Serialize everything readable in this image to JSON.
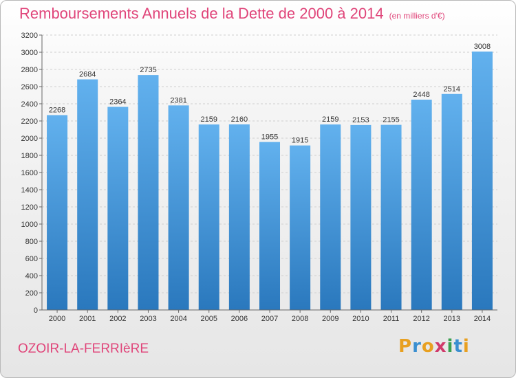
{
  "header": {
    "title": "Remboursements Annuels de la Dette de 2000 à 2014",
    "subtitle": "(en milliers d'€)"
  },
  "footer": {
    "city": "OZOIR-LA-FERRIèRE",
    "logo": [
      "P",
      "r",
      "o",
      "x",
      "i",
      "t",
      "i"
    ]
  },
  "colors": {
    "title": "#e0457a",
    "bar_light": "#62b1ee",
    "bar_dark": "#2d7cc0"
  },
  "chart_data": {
    "type": "bar",
    "title": "Remboursements Annuels de la Dette de 2000 à 2014",
    "xlabel": "",
    "ylabel": "",
    "categories": [
      "2000",
      "2001",
      "2002",
      "2003",
      "2004",
      "2005",
      "2006",
      "2007",
      "2008",
      "2009",
      "2010",
      "2011",
      "2012",
      "2013",
      "2014"
    ],
    "values": [
      2268,
      2684,
      2364,
      2735,
      2381,
      2159,
      2160,
      1955,
      1915,
      2159,
      2153,
      2155,
      2448,
      2514,
      3008
    ],
    "ylim": [
      0,
      3200
    ],
    "yticks": [
      0,
      200,
      400,
      600,
      800,
      1000,
      1200,
      1400,
      1600,
      1800,
      2000,
      2200,
      2400,
      2600,
      2800,
      3000,
      3200
    ],
    "grid": true,
    "legend": "none"
  }
}
